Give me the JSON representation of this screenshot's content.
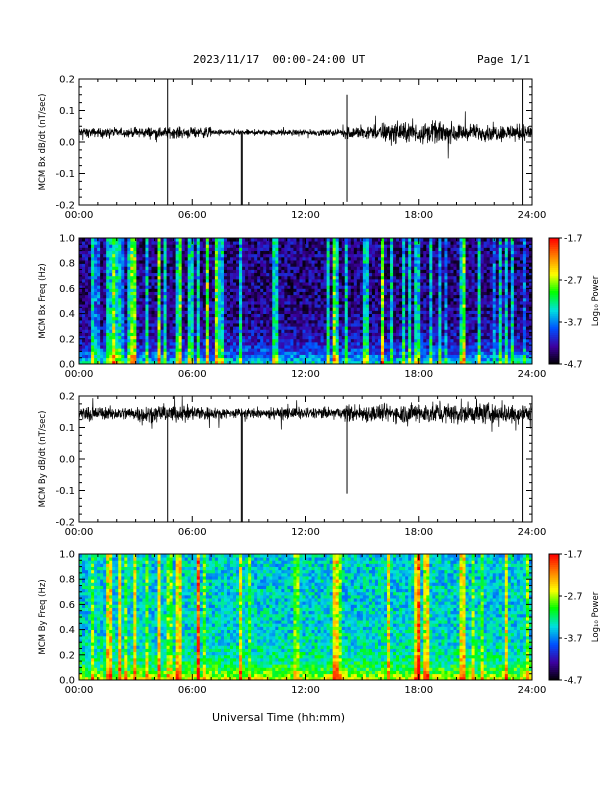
{
  "header": {
    "title": "2023/11/17  00:00-24:00 UT",
    "page": "Page 1/1"
  },
  "footer": {
    "xlabel": "Universal Time (hh:mm)"
  },
  "chart_data": [
    {
      "type": "line",
      "ylabel": "MCM Bx dB/dt (nT/sec)",
      "xlim": [
        0,
        24
      ],
      "ylim": [
        -0.2,
        0.2
      ],
      "x_ticks": [
        "00:00",
        "06:00",
        "12:00",
        "18:00",
        "24:00"
      ],
      "y_ticks": [
        "-0.2",
        "-0.1",
        "0.0",
        "0.1",
        "0.2"
      ],
      "series": [
        {
          "baseline": 0.03,
          "noise_profile": [
            {
              "x": [
                0,
                3
              ],
              "amp": 0.012
            },
            {
              "x": [
                3,
                7
              ],
              "amp": 0.015
            },
            {
              "x": [
                7,
                10
              ],
              "amp": 0.008
            },
            {
              "x": [
                10,
                14
              ],
              "amp": 0.008
            },
            {
              "x": [
                14,
                16
              ],
              "amp": 0.018
            },
            {
              "x": [
                16,
                20
              ],
              "amp": 0.028
            },
            {
              "x": [
                20,
                24
              ],
              "amp": 0.022
            }
          ],
          "spikes": [
            {
              "x": 4.7,
              "y": 0.2
            },
            {
              "x": 4.7,
              "y": -0.2
            },
            {
              "x": 8.6,
              "y": -0.2
            },
            {
              "x": 8.65,
              "y": -0.2
            },
            {
              "x": 14.2,
              "y": 0.15
            },
            {
              "x": 14.2,
              "y": -0.19
            },
            {
              "x": 23.5,
              "y": 0.2
            },
            {
              "x": 23.5,
              "y": -0.2
            }
          ]
        }
      ]
    },
    {
      "type": "heatmap",
      "ylabel": "MCM Bx Freq (Hz)",
      "colorbar_label": "Log₁₀ Power",
      "xlim": [
        0,
        24
      ],
      "ylim": [
        0,
        1.0
      ],
      "x_ticks": [
        "00:00",
        "06:00",
        "12:00",
        "18:00",
        "24:00"
      ],
      "y_ticks": [
        "0.0",
        "0.2",
        "0.4",
        "0.6",
        "0.8",
        "1.0"
      ],
      "colorbar_ticks": [
        "-1.7",
        "-2.7",
        "-3.7",
        "-4.7"
      ],
      "zlim": [
        -4.7,
        -1.7
      ],
      "colors": [
        "#000000",
        "#3c00a0",
        "#0050ff",
        "#00e0e0",
        "#00ff00",
        "#ffff00",
        "#ff8000",
        "#ff0000"
      ],
      "background_level": 0.12,
      "low_freq_boost": 0.35,
      "bright_columns": [
        0.7,
        1.6,
        1.9,
        2.2,
        2.7,
        3.0,
        3.6,
        4.2,
        4.6,
        5.3,
        5.9,
        6.3,
        6.8,
        7.3,
        7.5,
        8.6,
        10.4,
        13.2,
        13.6,
        14.2,
        15.2,
        16.1,
        16.6,
        17.2,
        17.5,
        17.9,
        18.6,
        19.1,
        20.3,
        21.2,
        22.3,
        22.6,
        23.0
      ]
    },
    {
      "type": "line",
      "ylabel": "MCM By dB/dt (nT/sec)",
      "xlim": [
        0,
        24
      ],
      "ylim": [
        -0.2,
        0.2
      ],
      "x_ticks": [
        "00:00",
        "06:00",
        "12:00",
        "18:00",
        "24:00"
      ],
      "y_ticks": [
        "-0.2",
        "-0.1",
        "0.0",
        "0.1",
        "0.2"
      ],
      "series": [
        {
          "baseline": 0.145,
          "noise_profile": [
            {
              "x": [
                0,
                3
              ],
              "amp": 0.018
            },
            {
              "x": [
                3,
                7
              ],
              "amp": 0.022
            },
            {
              "x": [
                7,
                10
              ],
              "amp": 0.014
            },
            {
              "x": [
                10,
                14
              ],
              "amp": 0.016
            },
            {
              "x": [
                14,
                17
              ],
              "amp": 0.024
            },
            {
              "x": [
                17,
                24
              ],
              "amp": 0.028
            }
          ],
          "spikes": [
            {
              "x": 4.7,
              "y": -0.2
            },
            {
              "x": 8.6,
              "y": -0.2
            },
            {
              "x": 8.65,
              "y": -0.2
            },
            {
              "x": 14.2,
              "y": -0.11
            },
            {
              "x": 23.5,
              "y": -0.2
            }
          ]
        }
      ]
    },
    {
      "type": "heatmap",
      "ylabel": "MCM By Freq (Hz)",
      "colorbar_label": "Log₁₀ Power",
      "xlim": [
        0,
        24
      ],
      "ylim": [
        0,
        1.0
      ],
      "x_ticks": [
        "00:00",
        "06:00",
        "12:00",
        "18:00",
        "24:00"
      ],
      "y_ticks": [
        "0.0",
        "0.2",
        "0.4",
        "0.6",
        "0.8",
        "1.0"
      ],
      "colorbar_ticks": [
        "-1.7",
        "-2.7",
        "-3.7",
        "-4.7"
      ],
      "zlim": [
        -4.7,
        -1.7
      ],
      "colors": [
        "#000000",
        "#3c00a0",
        "#0050ff",
        "#00e0e0",
        "#00ff00",
        "#ffff00",
        "#ff8000",
        "#ff0000"
      ],
      "background_level": 0.42,
      "low_freq_boost": 0.3,
      "bright_columns": [
        1.6,
        2.2,
        3.0,
        4.2,
        5.3,
        6.3,
        8.6,
        13.6,
        16.4,
        17.9,
        18.4,
        20.3,
        22.6
      ]
    }
  ]
}
